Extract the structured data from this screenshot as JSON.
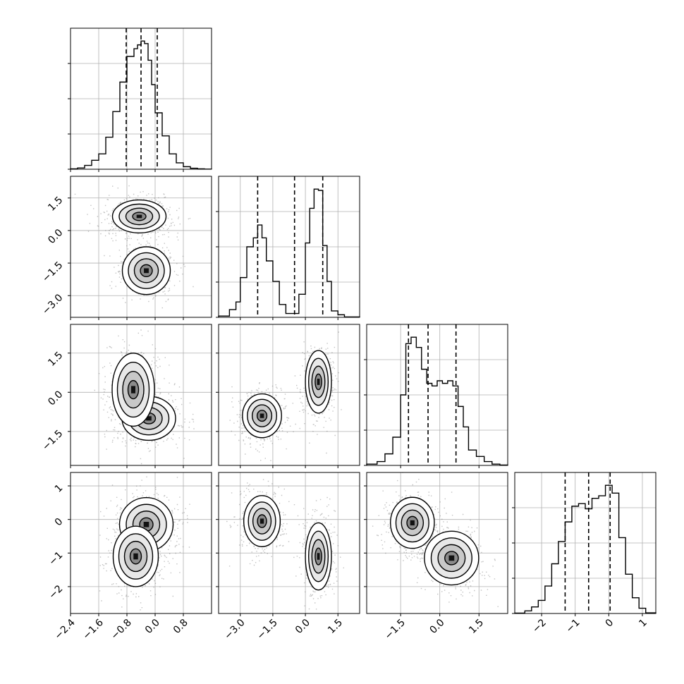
{
  "chart_data": {
    "type": "corner",
    "title": "",
    "n_params": 4,
    "grid": true,
    "colors": {
      "line": "#000000",
      "scatter": "#777777",
      "grid": "#b0b0b0"
    },
    "params": [
      {
        "range": [
          -2.4,
          1.6
        ],
        "ticks": [
          -2.4,
          -1.6,
          -0.8,
          0.0,
          0.8
        ],
        "tick_labels": [
          "−2.4",
          "−1.6",
          "−0.8",
          "0.0",
          "0.8"
        ],
        "quantiles": [
          -0.82,
          -0.4,
          0.06
        ]
      },
      {
        "range": [
          -4.0,
          2.5
        ],
        "ticks": [
          -3.0,
          -1.5,
          0.0,
          1.5
        ],
        "tick_labels": [
          "−3.0",
          "−1.5",
          "0.0",
          "1.5"
        ],
        "quantiles": [
          -2.2,
          -0.5,
          0.8
        ]
      },
      {
        "range": [
          -2.8,
          2.6
        ],
        "ticks": [
          -1.5,
          0.0,
          1.5
        ],
        "tick_labels": [
          "−1.5",
          "0.0",
          "1.5"
        ],
        "quantiles": [
          -1.2,
          -0.45,
          0.62
        ]
      },
      {
        "range": [
          -2.8,
          1.4
        ],
        "ticks": [
          -2,
          -1,
          0,
          1
        ],
        "tick_labels": [
          "−2",
          "−1",
          "0",
          "1"
        ],
        "quantiles": [
          -1.3,
          -0.6,
          0.04
        ]
      }
    ],
    "histograms": [
      {
        "bin_edges": [
          -2.4,
          -2.2,
          -2.0,
          -1.8,
          -1.6,
          -1.4,
          -1.2,
          -1.0,
          -0.8,
          -0.6,
          -0.5,
          -0.4,
          -0.3,
          -0.2,
          -0.1,
          0.0,
          0.2,
          0.4,
          0.6,
          0.8,
          1.0,
          1.2,
          1.4,
          1.6
        ],
        "counts": [
          0.003,
          0.01,
          0.03,
          0.07,
          0.12,
          0.25,
          0.45,
          0.68,
          0.88,
          0.94,
          0.97,
          1.0,
          0.98,
          0.85,
          0.66,
          0.44,
          0.26,
          0.12,
          0.05,
          0.02,
          0.008,
          0.003,
          0.001
        ]
      },
      {
        "bin_edges": [
          -4.0,
          -3.5,
          -3.2,
          -3.0,
          -2.7,
          -2.4,
          -2.2,
          -2.0,
          -1.8,
          -1.5,
          -1.2,
          -0.9,
          -0.6,
          -0.3,
          0.0,
          0.2,
          0.4,
          0.6,
          0.8,
          1.0,
          1.2,
          1.5,
          1.8,
          2.5
        ],
        "counts": [
          0.01,
          0.06,
          0.12,
          0.31,
          0.55,
          0.62,
          0.72,
          0.62,
          0.44,
          0.28,
          0.1,
          0.03,
          0.03,
          0.18,
          0.58,
          0.85,
          1.0,
          0.99,
          0.56,
          0.28,
          0.05,
          0.02,
          0.003
        ]
      },
      {
        "bin_edges": [
          -2.8,
          -2.4,
          -2.1,
          -1.8,
          -1.5,
          -1.3,
          -1.1,
          -0.9,
          -0.7,
          -0.5,
          -0.3,
          -0.1,
          0.1,
          0.3,
          0.5,
          0.7,
          0.9,
          1.1,
          1.4,
          1.7,
          2.0,
          2.3,
          2.6
        ],
        "counts": [
          0.01,
          0.03,
          0.09,
          0.22,
          0.55,
          0.95,
          1.0,
          0.92,
          0.75,
          0.64,
          0.62,
          0.66,
          0.64,
          0.66,
          0.62,
          0.46,
          0.3,
          0.12,
          0.07,
          0.03,
          0.01,
          0.003
        ]
      },
      {
        "bin_edges": [
          -2.8,
          -2.5,
          -2.3,
          -2.1,
          -1.9,
          -1.7,
          -1.5,
          -1.3,
          -1.1,
          -0.9,
          -0.7,
          -0.5,
          -0.3,
          -0.1,
          0.1,
          0.3,
          0.5,
          0.7,
          0.9,
          1.1,
          1.4
        ],
        "counts": [
          0.003,
          0.02,
          0.05,
          0.1,
          0.21,
          0.38,
          0.55,
          0.7,
          0.82,
          0.84,
          0.8,
          0.88,
          0.9,
          0.98,
          0.92,
          0.58,
          0.3,
          0.12,
          0.04,
          0.005
        ]
      }
    ],
    "pairs": [
      {
        "x": 0,
        "y": 1,
        "modes": [
          {
            "cx": -0.45,
            "cy": 0.65,
            "sx": 0.38,
            "sy": 0.38,
            "w": 0.6
          },
          {
            "cx": -0.25,
            "cy": -1.85,
            "sx": 0.34,
            "sy": 0.55,
            "w": 0.4
          }
        ]
      },
      {
        "x": 0,
        "y": 2,
        "modes": [
          {
            "cx": -0.18,
            "cy": -1.0,
            "sx": 0.38,
            "sy": 0.42,
            "w": 0.5
          },
          {
            "cx": -0.62,
            "cy": 0.1,
            "sx": 0.3,
            "sy": 0.7,
            "w": 0.5
          }
        ]
      },
      {
        "x": 0,
        "y": 3,
        "modes": [
          {
            "cx": -0.25,
            "cy": -0.15,
            "sx": 0.38,
            "sy": 0.4,
            "w": 0.5
          },
          {
            "cx": -0.55,
            "cy": -1.1,
            "sx": 0.32,
            "sy": 0.45,
            "w": 0.5
          }
        ]
      },
      {
        "x": 1,
        "y": 2,
        "modes": [
          {
            "cx": -2.0,
            "cy": -0.9,
            "sx": 0.45,
            "sy": 0.42,
            "w": 0.5
          },
          {
            "cx": 0.6,
            "cy": 0.4,
            "sx": 0.3,
            "sy": 0.6,
            "w": 0.5
          }
        ]
      },
      {
        "x": 1,
        "y": 3,
        "modes": [
          {
            "cx": -2.0,
            "cy": -0.05,
            "sx": 0.42,
            "sy": 0.38,
            "w": 0.5
          },
          {
            "cx": 0.6,
            "cy": -1.1,
            "sx": 0.3,
            "sy": 0.5,
            "w": 0.5
          }
        ]
      },
      {
        "x": 2,
        "y": 3,
        "modes": [
          {
            "cx": -1.05,
            "cy": -0.1,
            "sx": 0.42,
            "sy": 0.38,
            "w": 0.55
          },
          {
            "cx": 0.45,
            "cy": -1.15,
            "sx": 0.52,
            "sy": 0.4,
            "w": 0.45
          }
        ]
      }
    ]
  }
}
